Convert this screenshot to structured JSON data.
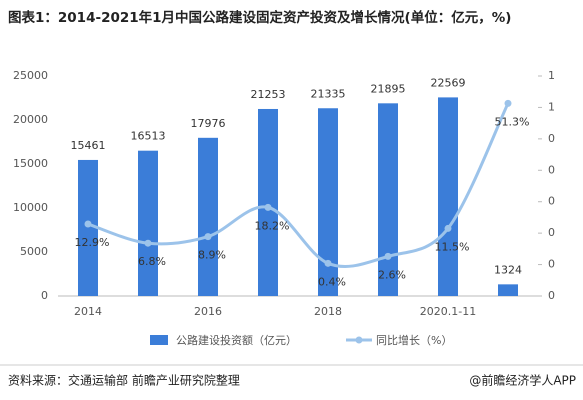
{
  "chart_data": {
    "type": "bar_line",
    "title": "图表1：2014-2021年1月中国公路建设固定资产投资及增长情况(单位：亿元，%)",
    "categories": [
      "2014",
      null,
      "2016",
      null,
      "2018",
      null,
      "2020.1-11",
      null
    ],
    "series": [
      {
        "name": "公路建设投资额（亿元）",
        "type": "bar",
        "color": "#3b7dd8",
        "values": [
          15461,
          16513,
          17976,
          21253,
          21335,
          21895,
          22569,
          1324
        ]
      },
      {
        "name": "同比增长（%）",
        "type": "line",
        "axis": "y2",
        "color": "#9cc3ea",
        "values": [
          0.129,
          0.068,
          0.089,
          0.182,
          0.004,
          0.026,
          0.115,
          0.513
        ],
        "value_labels": [
          "12.9%",
          "6.8%",
          "8.9%",
          "18.2%",
          "0.4%",
          "2.6%",
          "11.5%",
          "51.3%"
        ]
      }
    ],
    "ylim": [
      0,
      25000
    ],
    "yticks": [
      0,
      5000,
      10000,
      15000,
      20000,
      25000
    ],
    "y2lim": [
      -0.1,
      0.6
    ],
    "y2ticks": [
      {
        "value": -0.1,
        "label": "0"
      },
      {
        "value": 0,
        "label": "0"
      },
      {
        "value": 0.1,
        "label": "0"
      },
      {
        "value": 0.2,
        "label": "0"
      },
      {
        "value": 0.3,
        "label": "0"
      },
      {
        "value": 0.4,
        "label": "0"
      },
      {
        "value": 0.5,
        "label": "1"
      },
      {
        "value": 0.6,
        "label": "1"
      }
    ],
    "legend": "bottom",
    "source": "资料来源：交通运输部 前瞻产业研究院整理",
    "credit": "@前瞻经济学人APP"
  }
}
